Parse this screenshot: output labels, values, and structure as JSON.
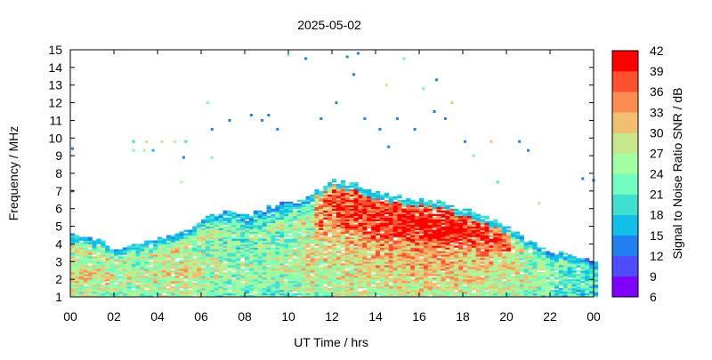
{
  "chart_data": {
    "type": "heatmap",
    "title": "2025-05-02",
    "xlabel": "UT Time / hrs",
    "ylabel": "Frequency / MHz",
    "xlim": [
      0,
      24
    ],
    "ylim": [
      1,
      15
    ],
    "xticks": [
      "00",
      "02",
      "04",
      "06",
      "08",
      "10",
      "12",
      "14",
      "16",
      "18",
      "20",
      "22",
      "00"
    ],
    "yticks": [
      "1",
      "2",
      "3",
      "4",
      "5",
      "6",
      "7",
      "8",
      "9",
      "10",
      "11",
      "12",
      "13",
      "14",
      "15"
    ],
    "colorbar": {
      "label": "Signal to Noise Ratio SNR / dB",
      "ticks": [
        "6",
        "9",
        "12",
        "15",
        "18",
        "21",
        "24",
        "27",
        "30",
        "33",
        "36",
        "39",
        "42"
      ],
      "bins": [
        {
          "from": 6,
          "to": 9,
          "color": "#8000ff"
        },
        {
          "from": 9,
          "to": 12,
          "color": "#4d4dff"
        },
        {
          "from": 12,
          "to": 15,
          "color": "#2080f0"
        },
        {
          "from": 15,
          "to": 18,
          "color": "#10c0e8"
        },
        {
          "from": 18,
          "to": 21,
          "color": "#40e0d0"
        },
        {
          "from": 21,
          "to": 24,
          "color": "#70ffc0"
        },
        {
          "from": 24,
          "to": 27,
          "color": "#a0ffa0"
        },
        {
          "from": 27,
          "to": 30,
          "color": "#c8e68c"
        },
        {
          "from": 30,
          "to": 33,
          "color": "#f0c070"
        },
        {
          "from": 33,
          "to": 36,
          "color": "#ff8c50"
        },
        {
          "from": 36,
          "to": 39,
          "color": "#ff5030"
        },
        {
          "from": 39,
          "to": 42,
          "color": "#ff0000"
        }
      ]
    },
    "envelope_hours": [
      0,
      1,
      2,
      3,
      4,
      5,
      6,
      7,
      8,
      9,
      10,
      11,
      12,
      13,
      14,
      15,
      16,
      17,
      18,
      19,
      20,
      21,
      22,
      23,
      24
    ],
    "envelope_max_freq_mhz": [
      4.5,
      4.2,
      3.8,
      3.9,
      4.3,
      4.6,
      5.4,
      5.8,
      5.6,
      6.0,
      6.3,
      6.8,
      7.6,
      7.3,
      6.8,
      6.6,
      6.5,
      6.3,
      5.9,
      5.5,
      4.9,
      4.0,
      3.5,
      3.2,
      3.0
    ],
    "peak_snr_db": [
      33,
      33,
      31,
      30,
      32,
      34,
      30,
      28,
      28,
      28,
      30,
      33,
      37,
      39,
      40,
      40,
      41,
      41,
      40,
      38,
      35,
      30,
      27,
      24,
      22
    ],
    "sporadic_points": [
      [
        0.1,
        9.4,
        14
      ],
      [
        0.1,
        7.0,
        14
      ],
      [
        2.9,
        9.8,
        18
      ],
      [
        3.5,
        9.8,
        27
      ],
      [
        4.2,
        9.8,
        27
      ],
      [
        4.8,
        9.8,
        24
      ],
      [
        5.3,
        9.8,
        18
      ],
      [
        2.9,
        9.3,
        21
      ],
      [
        3.4,
        9.3,
        27
      ],
      [
        3.8,
        9.3,
        15
      ],
      [
        5.2,
        8.9,
        14
      ],
      [
        5.1,
        7.5,
        24
      ],
      [
        6.3,
        12.0,
        21
      ],
      [
        6.5,
        10.5,
        14
      ],
      [
        7.3,
        11.0,
        14
      ],
      [
        8.3,
        11.3,
        14
      ],
      [
        8.8,
        11.0,
        14
      ],
      [
        9.5,
        10.5,
        14
      ],
      [
        10.0,
        14.7,
        21
      ],
      [
        10.8,
        14.5,
        14
      ],
      [
        11.5,
        11.1,
        14
      ],
      [
        12.7,
        14.6,
        14
      ],
      [
        13.2,
        14.8,
        14
      ],
      [
        13.5,
        11.1,
        14
      ],
      [
        14.2,
        10.5,
        14
      ],
      [
        14.5,
        13.0,
        27
      ],
      [
        14.6,
        9.5,
        14
      ],
      [
        15.3,
        14.5,
        21
      ],
      [
        15.8,
        10.5,
        14
      ],
      [
        16.2,
        12.8,
        21
      ],
      [
        16.7,
        11.5,
        14
      ],
      [
        17.2,
        11.1,
        14
      ],
      [
        17.5,
        12.0,
        30
      ],
      [
        18.1,
        9.8,
        14
      ],
      [
        18.5,
        9.0,
        21
      ],
      [
        19.3,
        9.8,
        30
      ],
      [
        19.6,
        7.5,
        18
      ],
      [
        20.6,
        9.8,
        14
      ],
      [
        21.0,
        9.3,
        14
      ],
      [
        21.5,
        6.3,
        27
      ],
      [
        23.5,
        7.7,
        14
      ],
      [
        24.0,
        7.6,
        14
      ],
      [
        13.0,
        13.6,
        14
      ],
      [
        16.8,
        13.3,
        14
      ],
      [
        12.2,
        12.0,
        14
      ],
      [
        15.0,
        11.1,
        14
      ],
      [
        9.1,
        11.3,
        14
      ],
      [
        6.5,
        8.9,
        21
      ]
    ]
  }
}
